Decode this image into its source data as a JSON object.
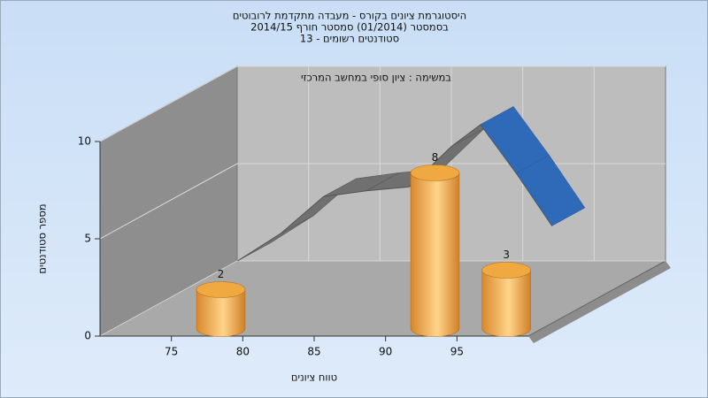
{
  "chart_data": {
    "type": "histogram",
    "title": [
      "היסטוגרמת ציונים בקורס - מעבדה מתקדמת לרובוטים",
      "בסמסטר  (01/2014)  סמסטר חורף 2014/15",
      "סטודנטים רשומים - 13"
    ],
    "subtitle": "במשימה : ציון סופי במחשב המרכזי",
    "x_label": "טווח ציונים",
    "y_label": "מספר סטודנטים",
    "bins": [
      70,
      75,
      80,
      85,
      90,
      95,
      100
    ],
    "values": [
      0,
      2,
      0,
      0,
      8,
      3
    ],
    "color": "#f0a840",
    "line": {
      "x": [
        76,
        79,
        82,
        85,
        88,
        91,
        93,
        95.5,
        98
      ],
      "values": [
        2.4,
        3.8,
        5.7,
        6.0,
        6.2,
        8.3,
        9.4,
        6.9,
        4.2
      ],
      "color": "#707070"
    },
    "xlim": [
      70,
      100
    ],
    "xticks": [
      75,
      80,
      85,
      90,
      95
    ],
    "ylim": [
      0,
      10
    ],
    "yticks": [
      0,
      5,
      10
    ],
    "grid": true
  }
}
